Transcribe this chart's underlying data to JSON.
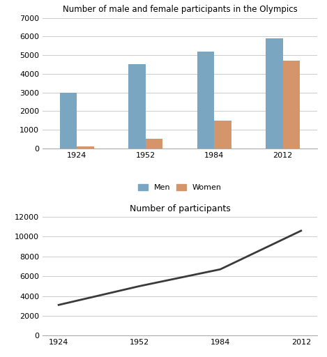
{
  "years": [
    "1924",
    "1952",
    "1984",
    "2012"
  ],
  "men": [
    3000,
    4500,
    5200,
    5900
  ],
  "women": [
    100,
    500,
    1500,
    4700
  ],
  "total": [
    3100,
    5000,
    6700,
    10600
  ],
  "bar_color_men": "#7AA6C2",
  "bar_color_women": "#D4956A",
  "line_color": "#3a3a3a",
  "title_bar": "Number of male and female participants in the Olympics",
  "title_line": "Number of participants",
  "ylim_bar": [
    0,
    7000
  ],
  "ylim_line": [
    0,
    12000
  ],
  "yticks_bar": [
    0,
    1000,
    2000,
    3000,
    4000,
    5000,
    6000,
    7000
  ],
  "yticks_line": [
    0,
    2000,
    4000,
    6000,
    8000,
    10000,
    12000
  ],
  "legend_men": "Men",
  "legend_women": "Women",
  "bar_width": 0.25,
  "bg_color": "#ffffff",
  "grid_color": "#cccccc"
}
